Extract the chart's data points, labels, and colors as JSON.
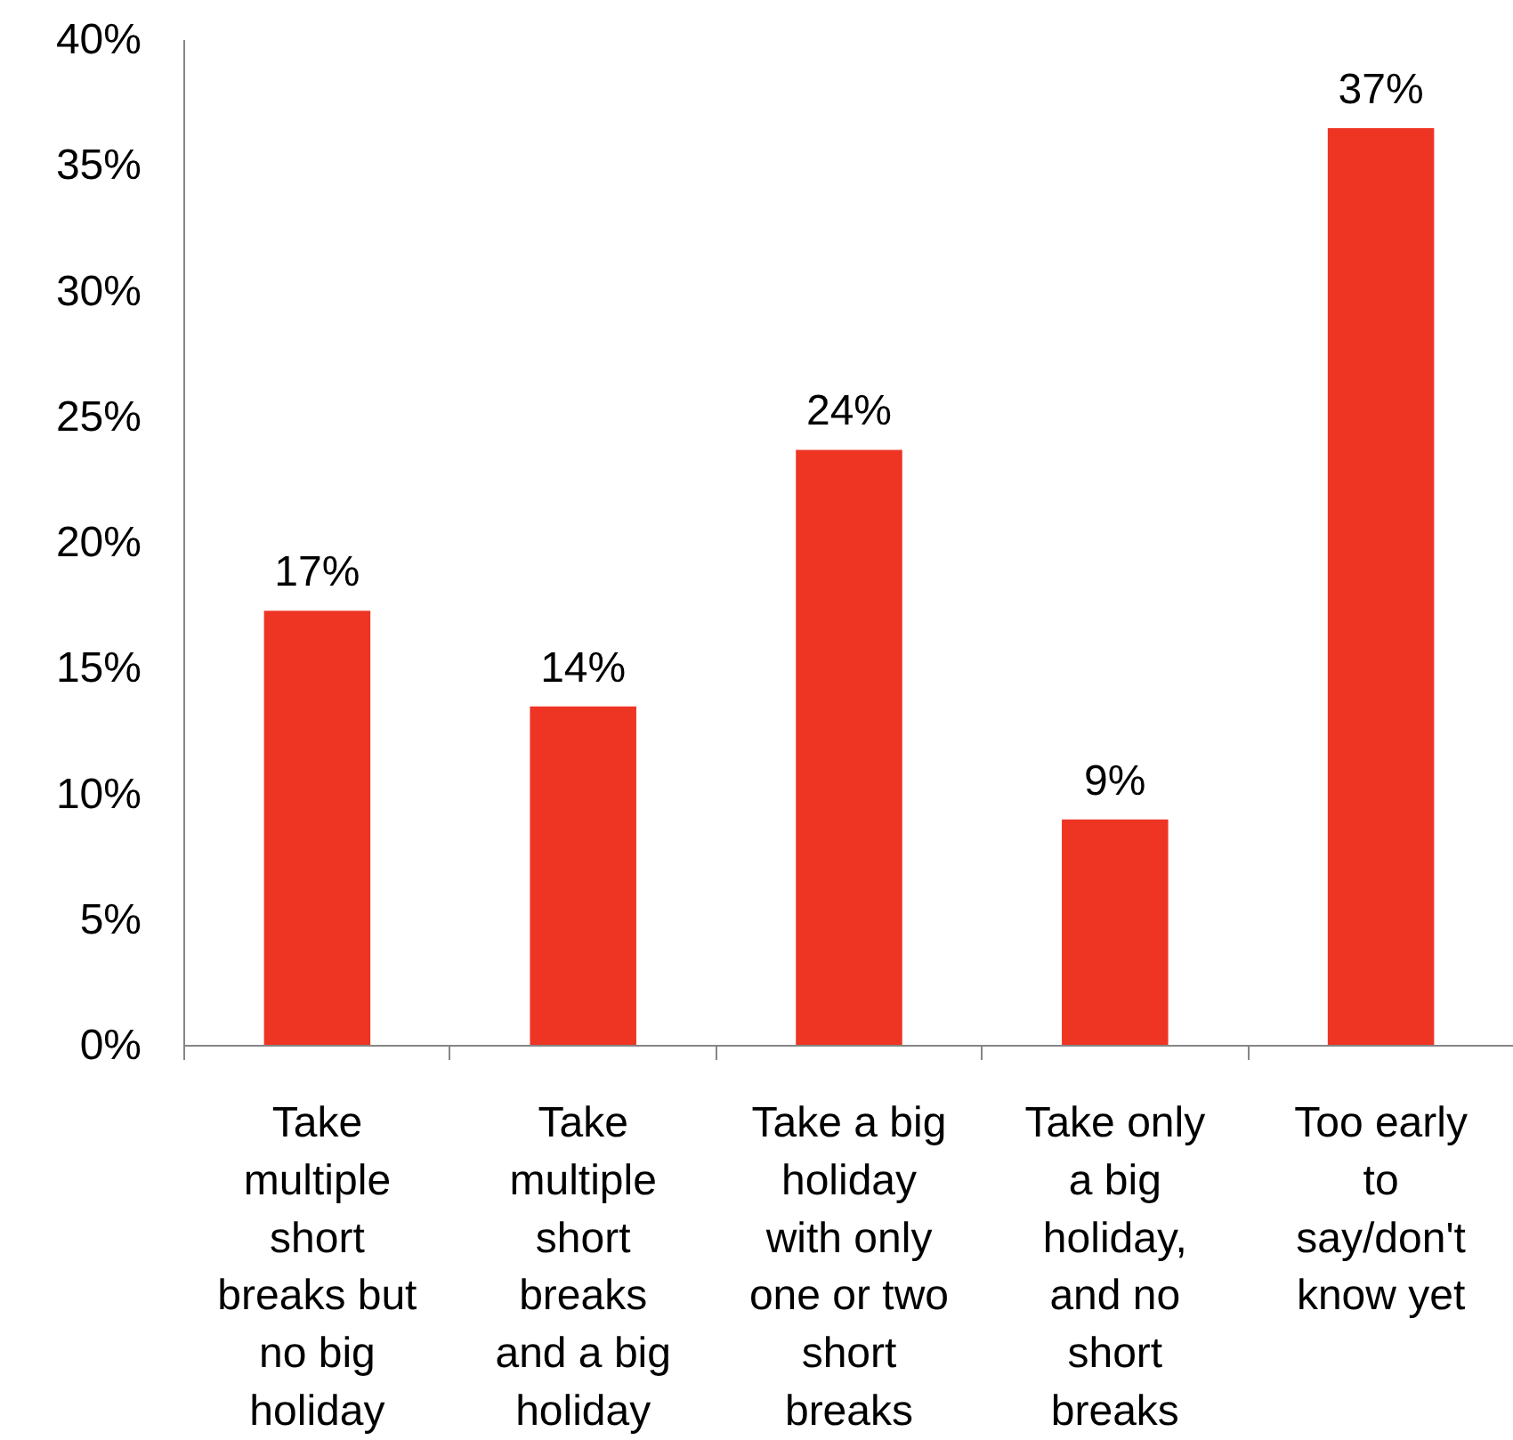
{
  "chart_data": {
    "type": "bar",
    "categories": [
      "Take multiple short breaks but no big holiday",
      "Take multiple short breaks and a big holiday",
      "Take a big holiday with only one or two short breaks",
      "Take only a big holiday, and no short breaks",
      "Too early to say/don't know yet"
    ],
    "values": [
      17.3,
      13.5,
      23.7,
      9.0,
      36.5
    ],
    "value_labels": [
      "17%",
      "14%",
      "24%",
      "9%",
      "37%"
    ],
    "color": "#ee3524",
    "ylim": [
      0,
      40
    ],
    "yticks": [
      {
        "value": 0,
        "label": "0%"
      },
      {
        "value": 5,
        "label": "5%"
      },
      {
        "value": 10,
        "label": "10%"
      },
      {
        "value": 15,
        "label": "15%"
      },
      {
        "value": 20,
        "label": "20%"
      },
      {
        "value": 25,
        "label": "25%"
      },
      {
        "value": 30,
        "label": "30%"
      },
      {
        "value": 35,
        "label": "35%"
      },
      {
        "value": 40,
        "label": "40%"
      }
    ],
    "grid": false
  }
}
